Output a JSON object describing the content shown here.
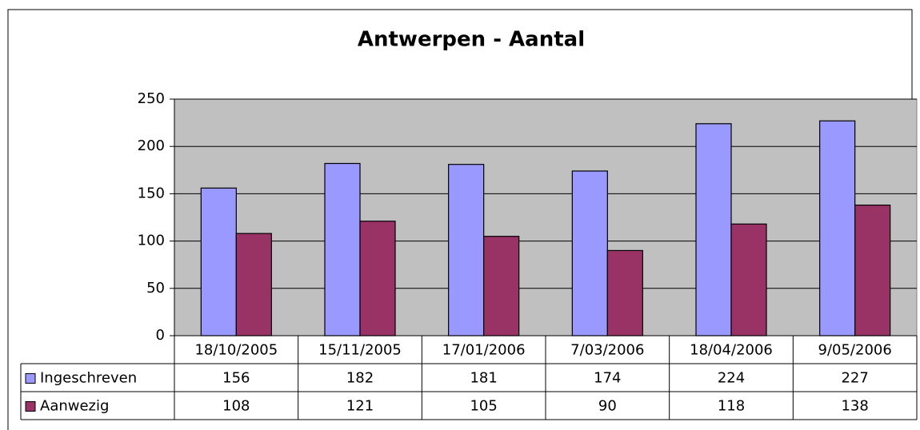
{
  "chart_data": {
    "type": "bar",
    "title": "Antwerpen - Aantal",
    "categories": [
      "18/10/2005",
      "15/11/2005",
      "17/01/2006",
      "7/03/2006",
      "18/04/2006",
      "9/05/2006"
    ],
    "series": [
      {
        "name": "Ingeschreven",
        "color": "#9999ff",
        "values": [
          156,
          182,
          181,
          174,
          224,
          227
        ]
      },
      {
        "name": "Aanwezig",
        "color": "#993366",
        "values": [
          108,
          121,
          105,
          90,
          118,
          138
        ]
      }
    ],
    "ylim": [
      0,
      250
    ],
    "yticks": [
      0,
      50,
      100,
      150,
      200,
      250
    ],
    "grid": true,
    "data_table": true
  }
}
